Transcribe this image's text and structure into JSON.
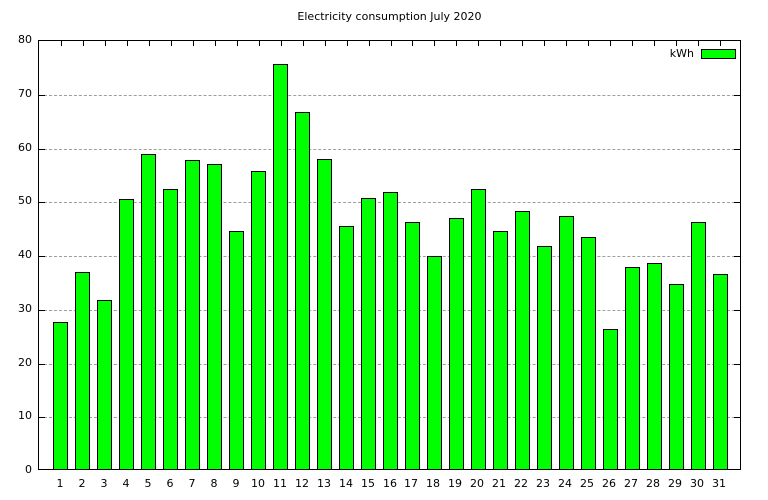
{
  "title": "Electricity consumption July 2020",
  "legend": {
    "label": "kWh",
    "swatch_color": "#00ff00"
  },
  "colors": {
    "bar_fill": "#00ff00",
    "bar_border": "#000000",
    "grid": "#9e9e9e",
    "axis": "#000000",
    "background": "#ffffff"
  },
  "chart_data": {
    "type": "bar",
    "title": "Electricity consumption July 2020",
    "categories": [
      "1",
      "2",
      "3",
      "4",
      "5",
      "6",
      "7",
      "8",
      "9",
      "10",
      "11",
      "12",
      "13",
      "14",
      "15",
      "16",
      "17",
      "18",
      "19",
      "20",
      "21",
      "22",
      "23",
      "24",
      "25",
      "26",
      "27",
      "28",
      "29",
      "30",
      "31"
    ],
    "values": [
      27.3,
      36.6,
      31.4,
      50.2,
      58.6,
      52.1,
      57.5,
      56.7,
      44.2,
      55.4,
      75.3,
      66.4,
      57.6,
      45.2,
      50.4,
      51.5,
      46.0,
      39.6,
      46.7,
      52.1,
      44.3,
      48.0,
      41.5,
      47.1,
      43.2,
      26.0,
      37.6,
      38.3,
      34.5,
      46.0,
      36.2
    ],
    "series": [
      {
        "name": "kWh",
        "values": [
          27.3,
          36.6,
          31.4,
          50.2,
          58.6,
          52.1,
          57.5,
          56.7,
          44.2,
          55.4,
          75.3,
          66.4,
          57.6,
          45.2,
          50.4,
          51.5,
          46.0,
          39.6,
          46.7,
          52.1,
          44.3,
          48.0,
          41.5,
          47.1,
          43.2,
          26.0,
          37.6,
          38.3,
          34.5,
          46.0,
          36.2
        ]
      }
    ],
    "xlabel": "",
    "ylabel": "",
    "ylim": [
      0,
      80
    ],
    "xlim": [
      0,
      32
    ],
    "yticks": [
      0,
      10,
      20,
      30,
      40,
      50,
      60,
      70,
      80
    ],
    "yticklabels": [
      "0",
      "10",
      "20",
      "30",
      "40",
      "50",
      "60",
      "70",
      "80"
    ],
    "grid": true,
    "legend_entries": [
      "kWh"
    ],
    "legend_position": "top-right"
  }
}
